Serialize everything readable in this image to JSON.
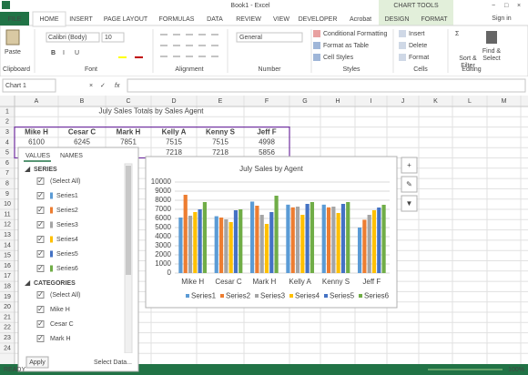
{
  "window": {
    "title": "Book1 - Excel",
    "tools": "CHART TOOLS",
    "user": "Sign in"
  },
  "tabs": [
    "FILE",
    "HOME",
    "INSERT",
    "PAGE LAYOUT",
    "FORMULAS",
    "DATA",
    "REVIEW",
    "VIEW",
    "DEVELOPER",
    "Acrobat",
    "DESIGN",
    "FORMAT"
  ],
  "ribbon": {
    "groups": [
      "Clipboard",
      "Font",
      "Alignment",
      "Number",
      "Styles",
      "Cells",
      "Editing"
    ],
    "paste": "Paste",
    "font": "Calibri (Body)",
    "size": "10",
    "number_format": "General",
    "styles": [
      "Conditional Formatting",
      "Format as Table",
      "Cell Styles"
    ],
    "cells": [
      "Insert",
      "Delete",
      "Format"
    ],
    "editing": [
      "Sort &",
      "Filter",
      "Find &",
      "Select"
    ]
  },
  "formula_bar": {
    "name_box": "Chart 1",
    "fx": "fx"
  },
  "sheet": {
    "columns": [
      "A",
      "B",
      "C",
      "D",
      "E",
      "F",
      "G",
      "H",
      "I",
      "J",
      "K",
      "L",
      "M"
    ],
    "rows": [
      "1",
      "2",
      "3",
      "4",
      "5",
      "6",
      "7",
      "8",
      "9",
      "10",
      "11",
      "12",
      "13",
      "14",
      "15",
      "16",
      "17",
      "18",
      "19",
      "20",
      "21",
      "22",
      "23",
      "24"
    ],
    "title": "July Sales Totals by Sales Agent",
    "headers": [
      "Mike H",
      "Cesar C",
      "Mark H",
      "Kelly A",
      "Kenny S",
      "Jeff F"
    ],
    "row4": [
      "6100",
      "6245",
      "7851",
      "7515",
      "7515",
      "4998"
    ],
    "row5_def": [
      "7218",
      "7218",
      "5856"
    ]
  },
  "filter_pane": {
    "tabs": [
      "VALUES",
      "NAMES"
    ],
    "series_heading": "SERIES",
    "series_items": [
      "(Select All)",
      "Series1",
      "Series2",
      "Series3",
      "Series4",
      "Series5",
      "Series6"
    ],
    "categories_heading": "CATEGORIES",
    "category_items": [
      "(Select All)",
      "Mike H",
      "Cesar C",
      "Mark H"
    ],
    "apply": "Apply",
    "select_data": "Select Data..."
  },
  "chart_data": {
    "type": "bar",
    "title": "July Sales by Agent",
    "categories": [
      "Mike H",
      "Cesar C",
      "Mark H",
      "Kelly A",
      "Kenny S",
      "Jeff F"
    ],
    "series": [
      {
        "name": "Series1",
        "color": "#5b9bd5",
        "values": [
          6100,
          6245,
          7851,
          7515,
          7515,
          4998
        ]
      },
      {
        "name": "Series2",
        "color": "#ed7d31",
        "values": [
          8600,
          6100,
          7400,
          7218,
          7218,
          5856
        ]
      },
      {
        "name": "Series3",
        "color": "#a5a5a5",
        "values": [
          6300,
          5900,
          6400,
          7300,
          7300,
          6400
        ]
      },
      {
        "name": "Series4",
        "color": "#ffc000",
        "values": [
          6700,
          5600,
          5400,
          6400,
          6600,
          6900
        ]
      },
      {
        "name": "Series5",
        "color": "#4472c4",
        "values": [
          7000,
          6900,
          6700,
          7600,
          7600,
          7200
        ]
      },
      {
        "name": "Series6",
        "color": "#70ad47",
        "values": [
          7800,
          7000,
          8500,
          7800,
          7800,
          7500
        ]
      }
    ],
    "ylim": [
      0,
      10000
    ],
    "yticks": [
      0,
      1000,
      2000,
      3000,
      4000,
      5000,
      6000,
      7000,
      8000,
      9000,
      10000
    ],
    "grid": true,
    "legend": "bottom"
  },
  "status": {
    "ready": "READY",
    "zoom": "100%"
  }
}
